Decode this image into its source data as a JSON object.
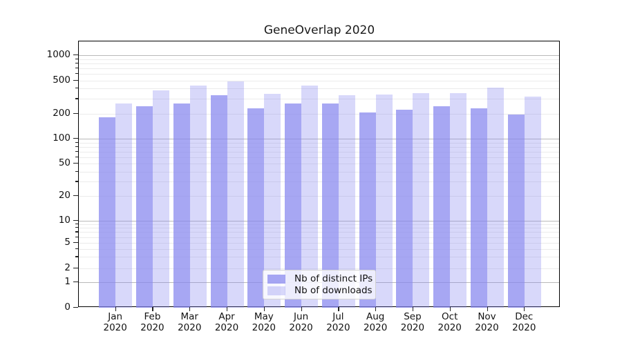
{
  "title": "GeneOverlap 2020",
  "chart_data": {
    "type": "bar",
    "title": "GeneOverlap 2020",
    "categories": [
      "Jan 2020",
      "Feb 2020",
      "Mar 2020",
      "Apr 2020",
      "May 2020",
      "Jun 2020",
      "Jul 2020",
      "Aug 2020",
      "Sep 2020",
      "Oct 2020",
      "Nov 2020",
      "Dec 2020"
    ],
    "x_tick_months": [
      "Jan",
      "Feb",
      "Mar",
      "Apr",
      "May",
      "Jun",
      "Jul",
      "Aug",
      "Sep",
      "Oct",
      "Nov",
      "Dec"
    ],
    "x_tick_year": "2020",
    "series": [
      {
        "name": "Nb of distinct IPs",
        "color": "#8585ef",
        "fill": "rgba(133,133,239,0.72)",
        "values": [
          180,
          245,
          265,
          330,
          230,
          265,
          265,
          205,
          225,
          245,
          230,
          195
        ]
      },
      {
        "name": "Nb of downloads",
        "color": "#d9d9f8",
        "fill": "rgba(133,133,239,0.32)",
        "values": [
          265,
          380,
          435,
          490,
          345,
          435,
          335,
          340,
          355,
          350,
          410,
          320
        ]
      }
    ],
    "yscale": "symlog",
    "yticks": [
      0,
      1,
      2,
      5,
      10,
      20,
      50,
      100,
      200,
      500,
      1000
    ],
    "ytick_labels": [
      "0",
      "1",
      "2",
      "5",
      "10",
      "20",
      "50",
      "100",
      "200",
      "500",
      "1000"
    ],
    "ylim": [
      0,
      1450
    ],
    "grid": {
      "major": [
        1,
        10,
        100,
        1000
      ],
      "minor_multipliers": [
        2,
        3,
        4,
        5,
        6,
        7,
        8,
        9
      ],
      "minor_decades": [
        1,
        10,
        100
      ]
    },
    "legend_position": "lower-center",
    "xlabel": "",
    "ylabel": ""
  }
}
